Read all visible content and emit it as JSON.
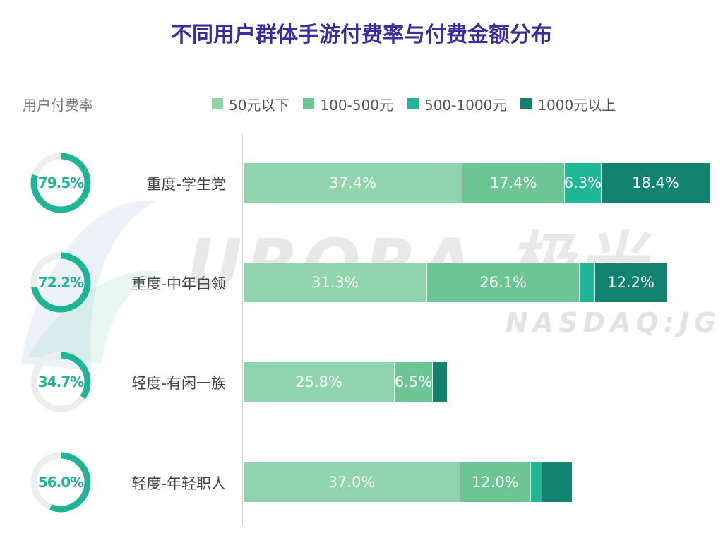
{
  "title": "不同用户群体手游付费率与付费金额分布",
  "rate_label": "用户付费率",
  "watermark": {
    "main": "URORA 极光",
    "sub": "NASDAQ:JG"
  },
  "colors": {
    "seg1": "#8fd4ad",
    "seg2": "#6cc693",
    "seg3": "#1fb797",
    "seg4": "#12836e",
    "donut": "#1eb495",
    "donut_track": "#ededed",
    "title": "#3b2aa0"
  },
  "chart_data": {
    "type": "bar",
    "orientation": "horizontal",
    "stacked": true,
    "title": "不同用户群体手游付费率与付费金额分布",
    "legend_position": "top",
    "categories": [
      "重度-学生党",
      "重度-中年白领",
      "轻度-有闲一族",
      "轻度-年轻职人"
    ],
    "payment_rates": [
      "79.5%",
      "72.2%",
      "34.7%",
      "56.0%"
    ],
    "payment_rate_values": [
      79.5,
      72.2,
      34.7,
      56.0
    ],
    "series": [
      {
        "name": "50元以下",
        "values": [
          37.4,
          31.3,
          25.8,
          37.0
        ],
        "labels": [
          "37.4%",
          "31.3%",
          "25.8%",
          "37.0%"
        ]
      },
      {
        "name": "100-500元",
        "values": [
          17.4,
          26.1,
          6.5,
          12.0
        ],
        "labels": [
          "17.4%",
          "26.1%",
          "6.5%",
          "12.0%"
        ]
      },
      {
        "name": "500-1000元",
        "values": [
          6.3,
          2.6,
          0.0,
          2.0
        ],
        "labels": [
          "6.3%",
          "",
          "",
          ""
        ]
      },
      {
        "name": "1000元以上",
        "values": [
          18.4,
          12.2,
          2.4,
          5.0
        ],
        "labels": [
          "18.4%",
          "12.2%",
          "",
          ""
        ]
      }
    ]
  }
}
